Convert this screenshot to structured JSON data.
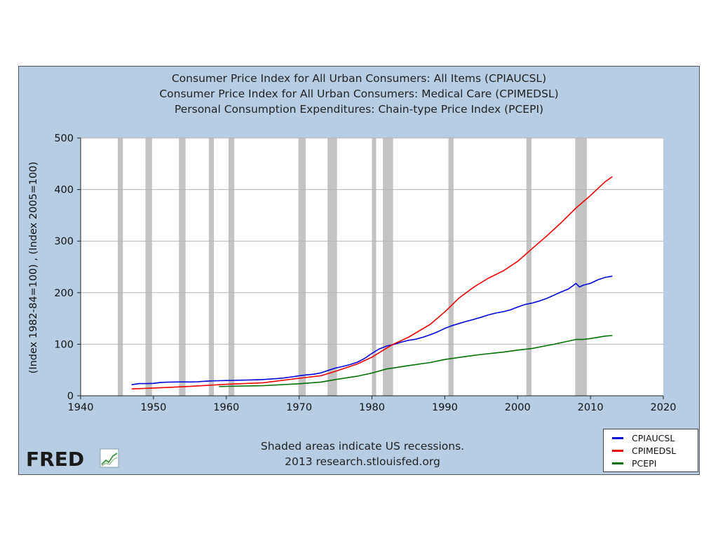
{
  "titles": [
    "Consumer Price Index for All Urban Consumers: All Items (CPIAUCSL)",
    "Consumer Price Index for All Urban Consumers: Medical Care (CPIMEDSL)",
    "Personal Consumption Expenditures: Chain-type Price Index (PCEPI)"
  ],
  "footer": {
    "line1": "Shaded areas indicate US recessions.",
    "line2": "2013 research.stlouisfed.org"
  },
  "logo": {
    "text": "FRED",
    "icon": "chart-trend-icon"
  },
  "colors": {
    "panel_background": "#b7cde3",
    "plot_background": "#ffffff",
    "grid": "#b5b5b5",
    "recession": "#c3c3c3"
  },
  "chart_data": {
    "type": "line",
    "xlabel": "",
    "ylabel": "(Index 1982-84=100) , (Index 2005=100)",
    "xlim": [
      1940,
      2020
    ],
    "ylim": [
      0,
      500
    ],
    "xticks": [
      1940,
      1950,
      1960,
      1970,
      1980,
      1990,
      2000,
      2010,
      2020
    ],
    "yticks": [
      0,
      100,
      200,
      300,
      400,
      500
    ],
    "grid": true,
    "legend_position": "bottom-right",
    "recessions": [
      [
        1945.1,
        1945.8
      ],
      [
        1948.9,
        1949.8
      ],
      [
        1953.5,
        1954.4
      ],
      [
        1957.6,
        1958.3
      ],
      [
        1960.3,
        1961.1
      ],
      [
        1969.9,
        1970.9
      ],
      [
        1973.9,
        1975.2
      ],
      [
        1980.0,
        1980.5
      ],
      [
        1981.5,
        1982.9
      ],
      [
        1990.5,
        1991.2
      ],
      [
        2001.2,
        2001.9
      ],
      [
        2007.9,
        2009.5
      ]
    ],
    "series": [
      {
        "name": "CPIAUCSL",
        "color": "#0000dd",
        "x": [
          1947,
          1948,
          1949,
          1950,
          1951,
          1952,
          1953,
          1954,
          1955,
          1956,
          1957,
          1958,
          1959,
          1960,
          1961,
          1962,
          1963,
          1964,
          1965,
          1966,
          1967,
          1968,
          1969,
          1970,
          1971,
          1972,
          1973,
          1974,
          1975,
          1976,
          1977,
          1978,
          1979,
          1980,
          1981,
          1982,
          1983,
          1984,
          1985,
          1986,
          1987,
          1988,
          1989,
          1990,
          1991,
          1992,
          1993,
          1994,
          1995,
          1996,
          1997,
          1998,
          1999,
          2000,
          2001,
          2002,
          2003,
          2004,
          2005,
          2006,
          2007,
          2008,
          2008.5,
          2009,
          2010,
          2011,
          2012,
          2013
        ],
        "y": [
          21.5,
          23.7,
          23.6,
          24.1,
          26.0,
          26.5,
          26.7,
          26.9,
          26.8,
          27.2,
          28.1,
          28.9,
          29.2,
          29.6,
          29.9,
          30.3,
          30.6,
          31.0,
          31.5,
          32.5,
          33.4,
          34.8,
          36.7,
          38.8,
          40.5,
          41.8,
          44.4,
          49.3,
          53.8,
          56.9,
          60.6,
          65.2,
          72.6,
          82.4,
          90.9,
          96.5,
          99.6,
          103.9,
          107.6,
          109.6,
          113.6,
          118.3,
          124.0,
          130.7,
          136.2,
          140.3,
          144.5,
          148.2,
          152.4,
          156.9,
          160.5,
          163.0,
          166.6,
          172.2,
          177.1,
          179.9,
          184.0,
          188.9,
          195.3,
          201.6,
          207.3,
          218.0,
          211.0,
          214.5,
          218.1,
          224.9,
          229.6,
          232.0
        ]
      },
      {
        "name": "CPIMEDSL",
        "color": "#ee0000",
        "x": [
          1947,
          1950,
          1955,
          1960,
          1965,
          1970,
          1973,
          1975,
          1978,
          1980,
          1982,
          1983,
          1985,
          1988,
          1990,
          1992,
          1994,
          1996,
          1998,
          2000,
          2002,
          2004,
          2006,
          2008,
          2010,
          2012,
          2013
        ],
        "y": [
          13.3,
          15.1,
          18.2,
          22.3,
          25.2,
          34.0,
          39.0,
          47.5,
          61.8,
          74.9,
          92.5,
          100.6,
          113.5,
          138.6,
          162.8,
          190.1,
          211.0,
          228.2,
          242.1,
          260.8,
          285.6,
          310.1,
          336.2,
          364.1,
          388.4,
          414.9,
          425.1
        ]
      },
      {
        "name": "PCEPI",
        "color": "#007000",
        "x": [
          1959,
          1960,
          1965,
          1970,
          1973,
          1975,
          1978,
          1980,
          1982,
          1983,
          1985,
          1988,
          1990,
          1993,
          1995,
          1998,
          2000,
          2002,
          2005,
          2007,
          2008,
          2009,
          2010,
          2012,
          2013
        ],
        "y": [
          18.0,
          18.3,
          19.6,
          23.4,
          26.6,
          31.5,
          38.0,
          44.1,
          52.0,
          54.1,
          58.5,
          64.5,
          70.4,
          76.5,
          80.1,
          84.6,
          88.6,
          91.8,
          100.0,
          106.1,
          109.2,
          109.2,
          111.0,
          115.8,
          116.9
        ]
      }
    ]
  }
}
